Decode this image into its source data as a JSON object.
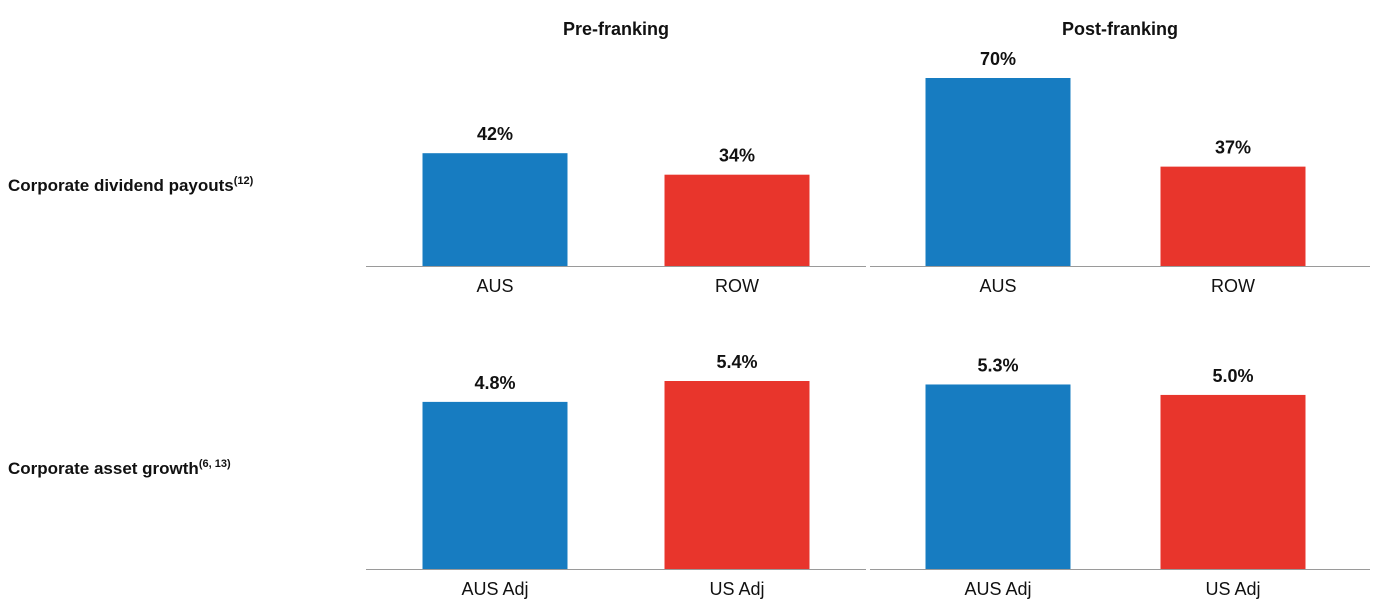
{
  "columns": [
    "Pre-franking",
    "Post-franking"
  ],
  "rows": [
    {
      "label": "Corporate dividend payouts",
      "note": "(12)"
    },
    {
      "label": "Corporate asset growth",
      "note": "(6, 13)"
    }
  ],
  "chart_data": [
    {
      "type": "bar",
      "categories": [
        "AUS",
        "ROW"
      ],
      "values": [
        42,
        34
      ],
      "value_labels": [
        "42%",
        "34%"
      ],
      "colors": [
        "#177cc1",
        "#e8352c"
      ]
    },
    {
      "type": "bar",
      "categories": [
        "AUS",
        "ROW"
      ],
      "values": [
        70,
        37
      ],
      "value_labels": [
        "70%",
        "37%"
      ],
      "colors": [
        "#177cc1",
        "#e8352c"
      ]
    },
    {
      "type": "bar",
      "categories": [
        "AUS Adj",
        "US Adj"
      ],
      "values": [
        4.8,
        5.4
      ],
      "value_labels": [
        "4.8%",
        "5.4%"
      ],
      "colors": [
        "#177cc1",
        "#e8352c"
      ]
    },
    {
      "type": "bar",
      "categories": [
        "AUS Adj",
        "US Adj"
      ],
      "values": [
        5.3,
        5.0
      ],
      "value_labels": [
        "5.3%",
        "5.0%"
      ],
      "colors": [
        "#177cc1",
        "#e8352c"
      ]
    }
  ]
}
